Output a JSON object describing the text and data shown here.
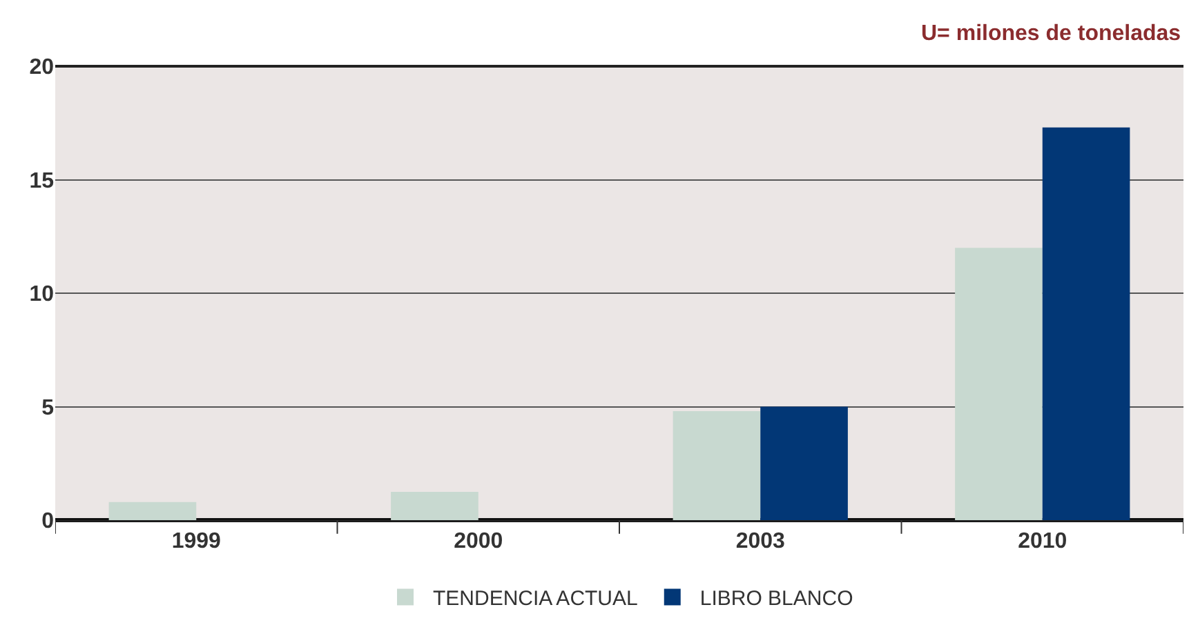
{
  "chart_data": {
    "type": "bar",
    "ylabel": "U= milones de toneladas",
    "categories": [
      "1999",
      "2000",
      "2003",
      "2010"
    ],
    "series": [
      {
        "name": "TENDENCIA ACTUAL",
        "color": "#c8d9d0",
        "values": [
          0.8,
          1.25,
          4.8,
          12.0
        ]
      },
      {
        "name": "LIBRO BLANCO",
        "color": "#023776",
        "values": [
          null,
          null,
          5.0,
          17.3
        ]
      }
    ],
    "ylim": [
      0,
      20
    ],
    "yticks": [
      0,
      5,
      10,
      15,
      20
    ],
    "grid": "y",
    "legend": "bottom"
  }
}
